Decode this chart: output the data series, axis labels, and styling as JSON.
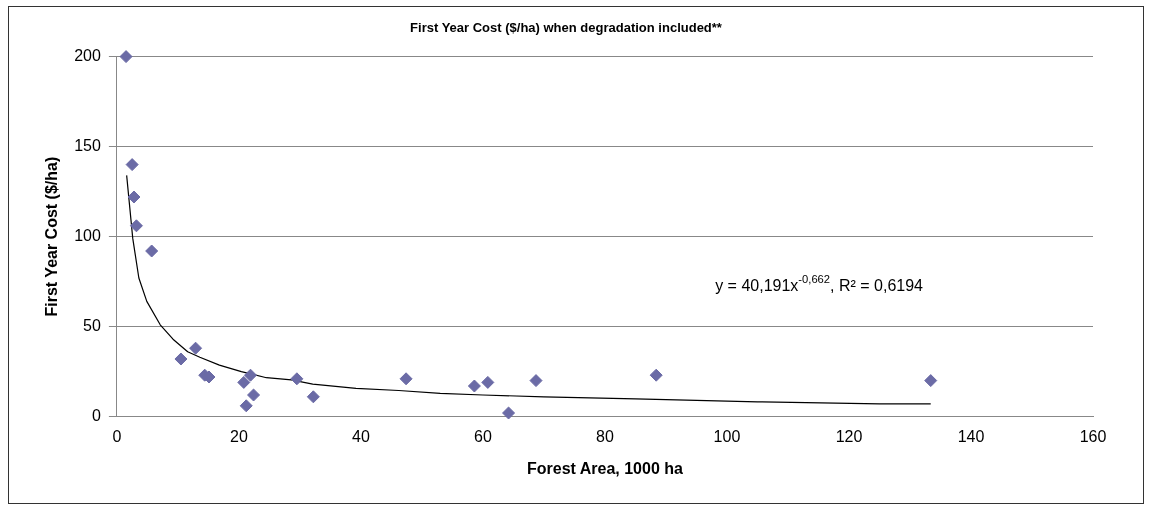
{
  "chart_data": {
    "type": "scatter",
    "title": "First Year Cost ($/ha) when degradation included**",
    "xlabel": "Forest Area, 1000 ha",
    "ylabel": "First Year Cost ($/ha)",
    "xlim": [
      0,
      160
    ],
    "xticks": [
      0,
      20,
      40,
      60,
      80,
      100,
      120,
      140,
      160
    ],
    "ylim": [
      0,
      200
    ],
    "yticks": [
      0,
      50,
      100,
      150,
      200
    ],
    "grid": "y",
    "legend": false,
    "annotations": [
      "y = 40,191x$^{-0,662}$, R² = 0,6194"
    ],
    "series": [
      {
        "type": "scatter",
        "marker": "diamond",
        "color": "#6b6ba6",
        "x": [
          1.5,
          2.5,
          2.8,
          3.2,
          5.7,
          10.5,
          12.9,
          14.4,
          15.1,
          20.8,
          21.2,
          21.9,
          22.4,
          29.5,
          32.2,
          47.4,
          58.6,
          60.8,
          64.2,
          68.7,
          88.4,
          133.4
        ],
        "values": [
          200,
          140,
          122,
          106,
          92,
          32,
          38,
          23,
          22,
          19,
          6,
          23,
          12,
          21,
          11,
          21,
          17,
          19,
          2,
          20,
          23,
          20
        ]
      },
      {
        "type": "line",
        "marker": "none",
        "line_style": "solid",
        "color": "#000000",
        "x": [
          1.6,
          2.6,
          3.6,
          4.9,
          7.1,
          9.2,
          11.6,
          13.6,
          16.8,
          20.4,
          24.5,
          28.6,
          32.1,
          39.2,
          46.2,
          53,
          60,
          70,
          85,
          105,
          125,
          133.4
        ],
        "values": [
          134,
          99,
          77,
          64,
          51,
          43,
          36,
          33,
          28.6,
          25,
          21.6,
          20.4,
          18,
          15.7,
          14.5,
          12.9,
          12,
          11,
          9.9,
          8.2,
          7.1,
          7.1
        ]
      }
    ]
  }
}
